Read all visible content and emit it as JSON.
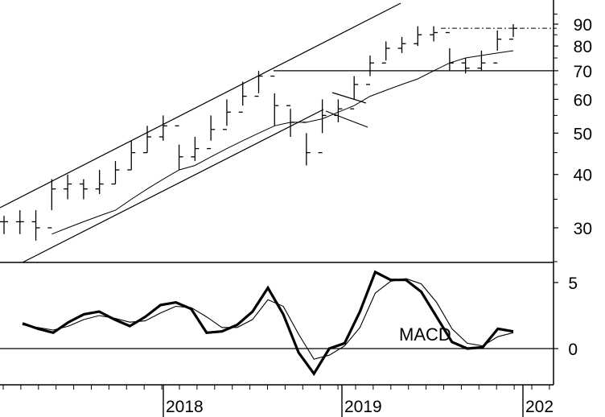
{
  "chart_data": [
    {
      "type": "ohlc",
      "panel": "price",
      "y_scale": "log",
      "ylim": [
        24,
        100
      ],
      "y_ticks": [
        "90",
        "80",
        "70",
        "60",
        "50",
        "40",
        "30"
      ],
      "y_tick_values": [
        90,
        80,
        70,
        60,
        50,
        40,
        30
      ],
      "x": [
        "2017-04",
        "2017-05",
        "2017-06",
        "2017-07",
        "2017-08",
        "2017-09",
        "2017-10",
        "2017-11",
        "2017-12",
        "2018-01",
        "2018-02",
        "2018-03",
        "2018-04",
        "2018-05",
        "2018-06",
        "2018-07",
        "2018-08",
        "2018-09",
        "2018-10",
        "2018-11",
        "2018-12",
        "2019-01",
        "2019-02",
        "2019-03",
        "2019-04",
        "2019-05",
        "2019-06",
        "2019-07",
        "2019-08",
        "2019-09",
        "2019-10",
        "2019-11",
        "2019-12"
      ],
      "close": [
        31,
        31,
        30,
        37,
        38,
        37,
        38,
        41,
        45,
        49,
        52,
        44,
        46,
        51,
        56,
        61,
        68,
        58,
        53,
        45,
        55,
        57,
        65,
        73,
        79,
        81,
        85,
        86,
        73,
        71,
        73,
        83,
        88
      ],
      "high": [
        32,
        33,
        33,
        39,
        40,
        39,
        41,
        43,
        48,
        52,
        55,
        47,
        49,
        55,
        60,
        66,
        70,
        62,
        57,
        50,
        60,
        60,
        68,
        76,
        82,
        84,
        89,
        89,
        79,
        75,
        78,
        87,
        90
      ],
      "low": [
        29,
        29,
        28,
        33,
        35,
        35,
        36,
        38,
        41,
        45,
        48,
        41,
        43,
        48,
        52,
        58,
        62,
        52,
        49,
        42,
        50,
        53,
        60,
        68,
        74,
        77,
        80,
        82,
        70,
        69,
        70,
        78,
        84
      ],
      "sma": [
        null,
        null,
        null,
        29,
        30,
        31,
        32,
        33,
        35,
        37,
        39,
        41,
        42,
        44,
        46,
        48,
        50,
        52,
        53,
        53,
        54,
        56,
        58,
        61,
        63,
        65,
        67,
        70,
        73,
        75,
        76,
        77,
        78
      ],
      "horizontal_lines": [
        70,
        88
      ],
      "trendlines": [
        "upper channel",
        "lower channel",
        "flag upper",
        "flag lower"
      ]
    },
    {
      "type": "line",
      "panel": "indicator",
      "label": "MACD",
      "ylim": [
        -3,
        6
      ],
      "y_ticks": [
        "5",
        "0"
      ],
      "y_tick_values": [
        5,
        0
      ],
      "series": [
        {
          "values": [
            1.9,
            1.5,
            1.2,
            2.0,
            2.6,
            2.8,
            2.2,
            1.7,
            2.4,
            3.3,
            3.5,
            3.0,
            1.2,
            1.3,
            1.8,
            2.8,
            4.6,
            2.6,
            -0.3,
            -1.9,
            0.0,
            0.4,
            2.8,
            5.8,
            5.2,
            5.2,
            4.3,
            2.4,
            0.5,
            0.0,
            0.1,
            1.5,
            1.3
          ]
        },
        {
          "values": [
            1.8,
            1.6,
            1.4,
            1.7,
            2.2,
            2.5,
            2.3,
            2.0,
            2.1,
            2.7,
            3.2,
            3.1,
            2.4,
            1.6,
            1.6,
            2.2,
            3.7,
            3.2,
            1.1,
            -0.8,
            -0.5,
            0.2,
            1.6,
            4.2,
            5.1,
            5.3,
            4.9,
            3.5,
            1.5,
            0.4,
            0.2,
            0.9,
            1.2
          ]
        }
      ],
      "zero_line": true
    }
  ],
  "x_axis": {
    "labels": [
      "2018",
      "2019",
      "202"
    ]
  }
}
